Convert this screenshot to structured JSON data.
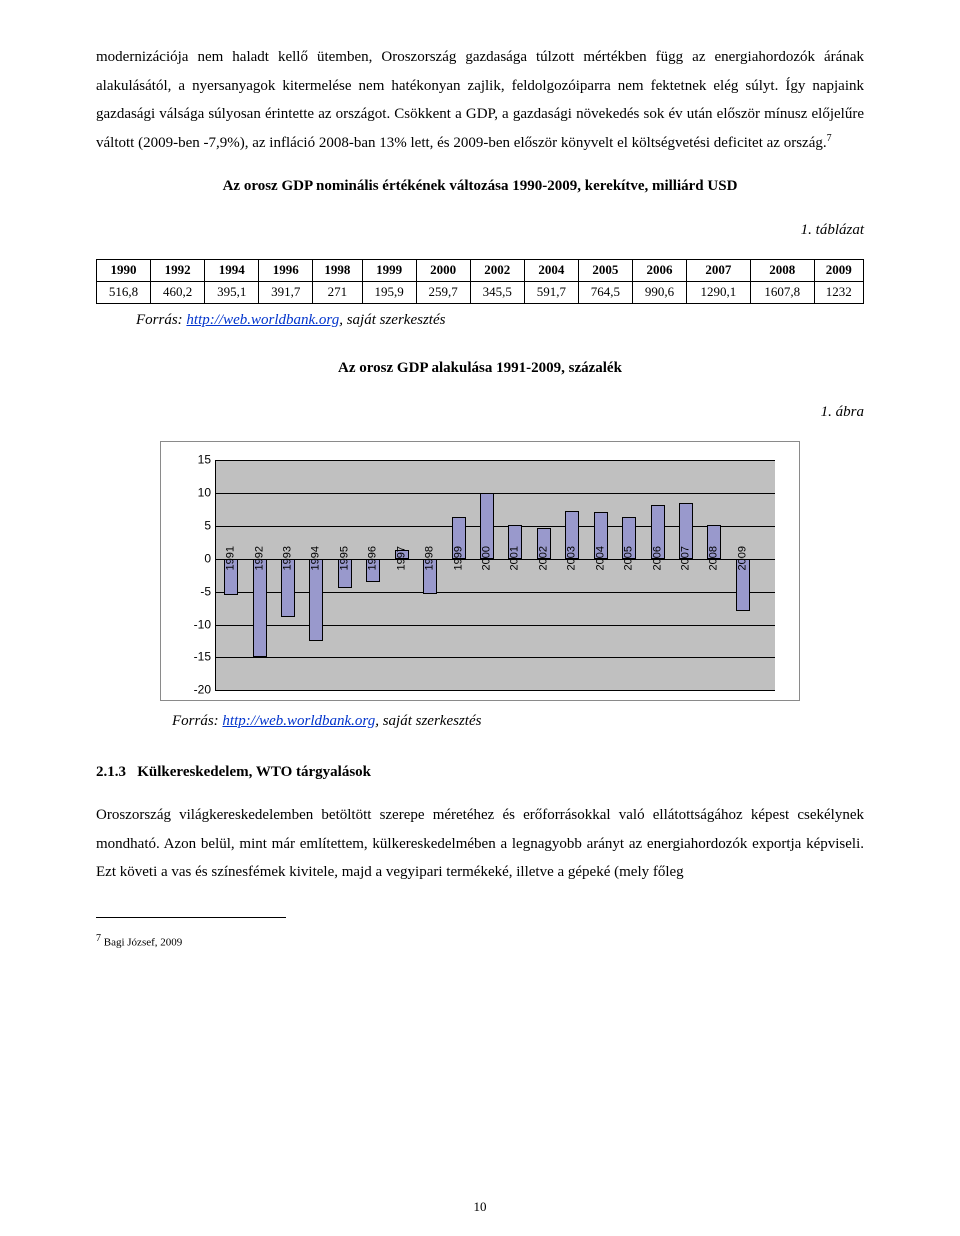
{
  "paragraph1": "modernizációja nem haladt kellő ütemben, Oroszország gazdasága túlzott mértékben függ az energiahordozók árának alakulásától, a nyersanyagok kitermelése nem hatékonyan zajlik, feldolgozóiparra nem fektetnek elég súlyt. Így napjaink gazdasági válsága súlyosan érintette az országot. Csökkent a GDP, a gazdasági növekedés sok év után először mínusz előjelűre váltott (2009-ben -7,9%), az infláció 2008-ban 13% lett, és 2009-ben először könyvelt el költségvetési deficitet az ország.",
  "p1_sup": "7",
  "table": {
    "title": "Az orosz GDP nominális értékének változása 1990-2009, kerekítve, milliárd USD",
    "subtitle": "1. táblázat",
    "headers": [
      "1990",
      "1992",
      "1994",
      "1996",
      "1998",
      "1999",
      "2000",
      "2002",
      "2004",
      "2005",
      "2006",
      "2007",
      "2008",
      "2009"
    ],
    "row": [
      "516,8",
      "460,2",
      "395,1",
      "391,7",
      "271",
      "195,9",
      "259,7",
      "345,5",
      "591,7",
      "764,5",
      "990,6",
      "1290,1",
      "1607,8",
      "1232"
    ]
  },
  "source_prefix": "Forrás: ",
  "source_link_text": "http://web.worldbank.org",
  "source_suffix": ", saját szerkesztés",
  "chart": {
    "title": "Az orosz GDP alakulása 1991-2009, százalék",
    "subtitle": "1. ábra",
    "years": [
      "1991",
      "1992",
      "1993",
      "1994",
      "1995",
      "1996",
      "1997",
      "1998",
      "1999",
      "2000",
      "2001",
      "2002",
      "2003",
      "2004",
      "2005",
      "2006",
      "2007",
      "2008",
      "2009"
    ],
    "values": [
      -5.5,
      -15,
      -8.8,
      -12.5,
      -4.5,
      -3.5,
      1.4,
      -5.3,
      6.4,
      10,
      5.1,
      4.7,
      7.3,
      7.2,
      6.4,
      8.2,
      8.5,
      5.2,
      -7.9
    ],
    "ymin": -20,
    "ymax": 15,
    "ystep": 5,
    "bar_fill": "#9999cc",
    "plot_bg": "#c0c0c0",
    "figure_h": 230,
    "figure_w_inner": 540
  },
  "section_num": "2.1.3",
  "section_title": "Külkereskedelem, WTO tárgyalások",
  "paragraph2": "Oroszország világkereskedelemben betöltött szerepe méretéhez és erőforrásokkal való ellátottságához képest csekélynek mondható. Azon belül, mint már említettem, külkereskedelmében a legnagyobb arányt az energiahordozók exportja képviseli. Ezt követi a vas és színesfémek kivitele, majd a vegyipari termékeké, illetve a gépeké (mely főleg",
  "footnote_mark": "7",
  "footnote_text": " Bagi József, 2009",
  "page_number": "10"
}
